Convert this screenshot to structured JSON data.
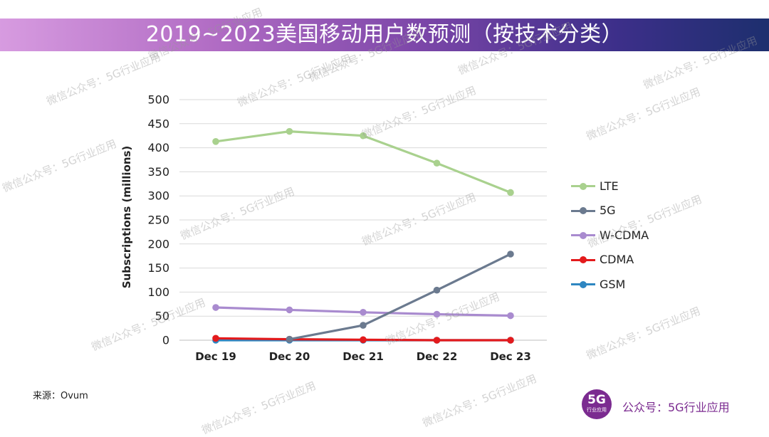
{
  "header": {
    "title": "2019~2023美国移动用户数预测（按技术分类）"
  },
  "chart_data": {
    "type": "line",
    "title": "",
    "xlabel": "",
    "ylabel": "Subscriptions (millions)",
    "categories": [
      "Dec 19",
      "Dec 20",
      "Dec 21",
      "Dec 22",
      "Dec 23"
    ],
    "ylim": [
      0,
      500
    ],
    "yticks": [
      0,
      50,
      100,
      150,
      200,
      250,
      300,
      350,
      400,
      450,
      500
    ],
    "grid": true,
    "legend_position": "right",
    "series": [
      {
        "name": "LTE",
        "color": "#a9d18e",
        "values": [
          413,
          434,
          425,
          368,
          307
        ]
      },
      {
        "name": "5G",
        "color": "#6b7a8f",
        "values": [
          null,
          2,
          31,
          104,
          179
        ]
      },
      {
        "name": "W-CDMA",
        "color": "#a98bcf",
        "values": [
          68,
          63,
          58,
          54,
          51
        ]
      },
      {
        "name": "CDMA",
        "color": "#e31a1c",
        "values": [
          4,
          2,
          1,
          0,
          0
        ]
      },
      {
        "name": "GSM",
        "color": "#2e86c1",
        "values": [
          0,
          0,
          0,
          0,
          0
        ]
      }
    ]
  },
  "footer": {
    "source": "来源：Ovum",
    "brand_logo_main": "5G",
    "brand_logo_sub": "行业应用",
    "brand_text": "公众号：5G行业应用"
  },
  "watermark_text": "微信公众号：5G行业应用"
}
